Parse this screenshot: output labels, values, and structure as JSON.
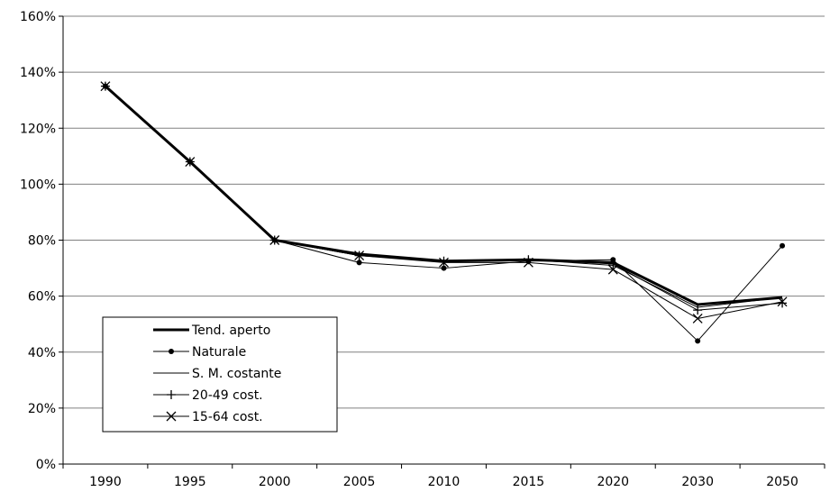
{
  "chart_data": {
    "type": "line",
    "title": "",
    "xlabel": "",
    "ylabel": "",
    "categories": [
      "1990",
      "1995",
      "2000",
      "2005",
      "2010",
      "2015",
      "2020",
      "2030",
      "2050"
    ],
    "ylim": [
      0,
      160
    ],
    "y_ticks": [
      "0%",
      "20%",
      "40%",
      "60%",
      "80%",
      "100%",
      "120%",
      "140%",
      "160%"
    ],
    "y_unit": "%",
    "grid": "horizontal",
    "legend_position": "lower-left",
    "series": [
      {
        "name": "Tend. aperto",
        "marker": "none",
        "stroke_weight": "thick",
        "color": "#000000",
        "values": [
          135,
          108,
          80,
          75,
          72.5,
          73,
          72,
          57,
          59.5
        ]
      },
      {
        "name": "Naturale",
        "marker": "dot",
        "stroke_weight": "thin",
        "color": "#000000",
        "values": [
          135,
          108,
          80,
          72,
          70,
          72.5,
          73,
          44,
          78
        ]
      },
      {
        "name": "S. M. costante",
        "marker": "none",
        "stroke_weight": "thin",
        "color": "#000000",
        "values": [
          135,
          108,
          80,
          74.5,
          72.5,
          73,
          71,
          56,
          59.5
        ]
      },
      {
        "name": "20-49 cost.",
        "marker": "plus",
        "stroke_weight": "thin",
        "color": "#000000",
        "values": [
          135,
          108,
          80,
          74.5,
          72.5,
          73,
          71.5,
          55,
          57.5
        ]
      },
      {
        "name": "15-64 cost.",
        "marker": "x",
        "stroke_weight": "thin",
        "color": "#000000",
        "values": [
          135,
          108,
          80,
          74.5,
          72,
          72,
          69.5,
          52,
          58
        ]
      }
    ]
  }
}
